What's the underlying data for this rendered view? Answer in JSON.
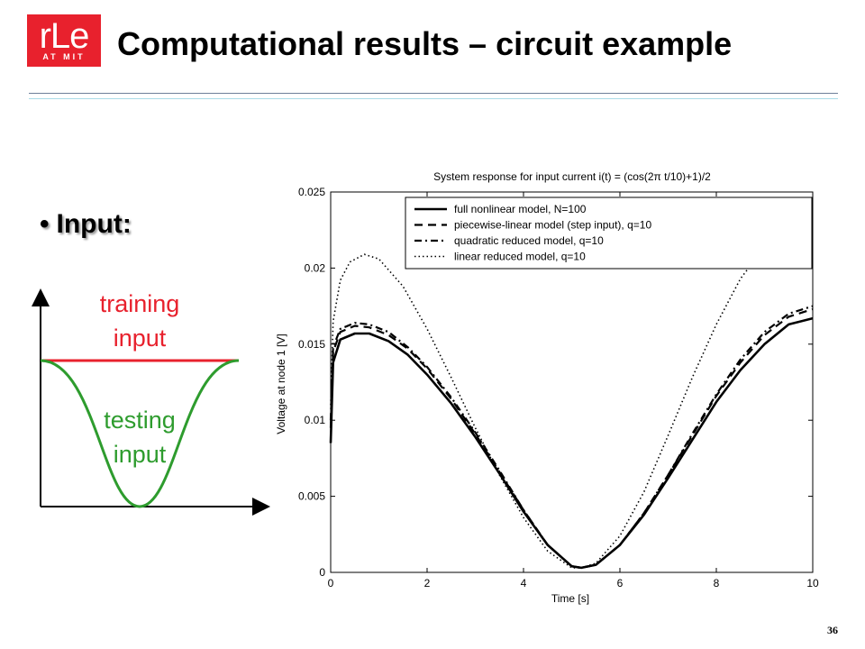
{
  "logo": {
    "main": "rLe",
    "sub": "AT MIT"
  },
  "slide": {
    "title": "Computational results – circuit example",
    "number": "36"
  },
  "bullet": {
    "text": "Input:"
  },
  "sketch": {
    "training_label": "training input",
    "testing_label": "testing input",
    "training_color": "#e8212d",
    "testing_color": "#2e9c2e"
  },
  "chart_data": {
    "type": "line",
    "title": "System response for input current i(t) = (cos(2π t/10)+1)/2",
    "xlabel": "Time [s]",
    "ylabel": "Voltage at node 1 [V]",
    "xlim": [
      0,
      10
    ],
    "ylim": [
      0,
      0.025
    ],
    "xticks": [
      0,
      2,
      4,
      6,
      8,
      10
    ],
    "yticks": [
      0,
      0.005,
      0.01,
      0.015,
      0.02,
      0.025
    ],
    "ytick_labels": [
      "0",
      "0.005",
      "0.01",
      "0.015",
      "0.02",
      "0.025"
    ],
    "legend_position": "top-right",
    "series": [
      {
        "name": "full nonlinear model, N=100",
        "style": "solid",
        "x": [
          0,
          0.05,
          0.2,
          0.5,
          0.8,
          1.2,
          1.6,
          2,
          2.5,
          3,
          3.5,
          4,
          4.5,
          5,
          5.2,
          5.5,
          6,
          6.5,
          7,
          7.5,
          8,
          8.5,
          9,
          9.5,
          10
        ],
        "y": [
          0.0085,
          0.0138,
          0.0153,
          0.0157,
          0.0157,
          0.0152,
          0.0143,
          0.013,
          0.0111,
          0.0089,
          0.0065,
          0.004,
          0.0018,
          0.0004,
          0.0003,
          0.0005,
          0.0018,
          0.0038,
          0.0062,
          0.0087,
          0.0112,
          0.0133,
          0.015,
          0.0163,
          0.0167
        ]
      },
      {
        "name": "piecewise-linear model (step input), q=10",
        "style": "dashed",
        "x": [
          0,
          0.05,
          0.2,
          0.5,
          0.8,
          1.2,
          1.6,
          2,
          2.5,
          3,
          3.5,
          4,
          4.5,
          5,
          5.2,
          5.5,
          6,
          6.5,
          7,
          7.5,
          8,
          8.5,
          9,
          9.5,
          10
        ],
        "y": [
          0.0095,
          0.0145,
          0.0158,
          0.0162,
          0.0161,
          0.0156,
          0.0147,
          0.0134,
          0.0114,
          0.0091,
          0.0066,
          0.0041,
          0.0018,
          0.0004,
          0.0003,
          0.0005,
          0.0018,
          0.0039,
          0.0064,
          0.009,
          0.0116,
          0.0138,
          0.0156,
          0.0168,
          0.0173
        ]
      },
      {
        "name": "quadratic reduced model, q=10",
        "style": "dashdot",
        "x": [
          0,
          0.05,
          0.2,
          0.5,
          0.8,
          1.2,
          1.6,
          2,
          2.5,
          3,
          3.5,
          4,
          4.5,
          5,
          5.2,
          5.5,
          6,
          6.5,
          7,
          7.5,
          8,
          8.5,
          9,
          9.5,
          10
        ],
        "y": [
          0.01,
          0.0148,
          0.016,
          0.0164,
          0.0163,
          0.0158,
          0.0148,
          0.0135,
          0.0115,
          0.0092,
          0.0067,
          0.0041,
          0.0018,
          0.0004,
          0.0003,
          0.0005,
          0.0018,
          0.0039,
          0.0064,
          0.0091,
          0.0117,
          0.014,
          0.0158,
          0.017,
          0.0175
        ]
      },
      {
        "name": "linear reduced model, q=10",
        "style": "dotted",
        "x": [
          0,
          0.05,
          0.2,
          0.4,
          0.7,
          1,
          1.5,
          2,
          2.5,
          3,
          3.5,
          4,
          4.5,
          5,
          5.2,
          5.5,
          6,
          6.5,
          7,
          7.5,
          8,
          8.5,
          9,
          9.5,
          10
        ],
        "y": [
          0.011,
          0.0165,
          0.0192,
          0.0204,
          0.0209,
          0.0206,
          0.0188,
          0.016,
          0.0128,
          0.0095,
          0.0064,
          0.0036,
          0.0014,
          0.0003,
          0.0003,
          0.0006,
          0.0024,
          0.0053,
          0.009,
          0.0128,
          0.0163,
          0.0193,
          0.0214,
          0.0226,
          0.0231
        ]
      }
    ]
  }
}
